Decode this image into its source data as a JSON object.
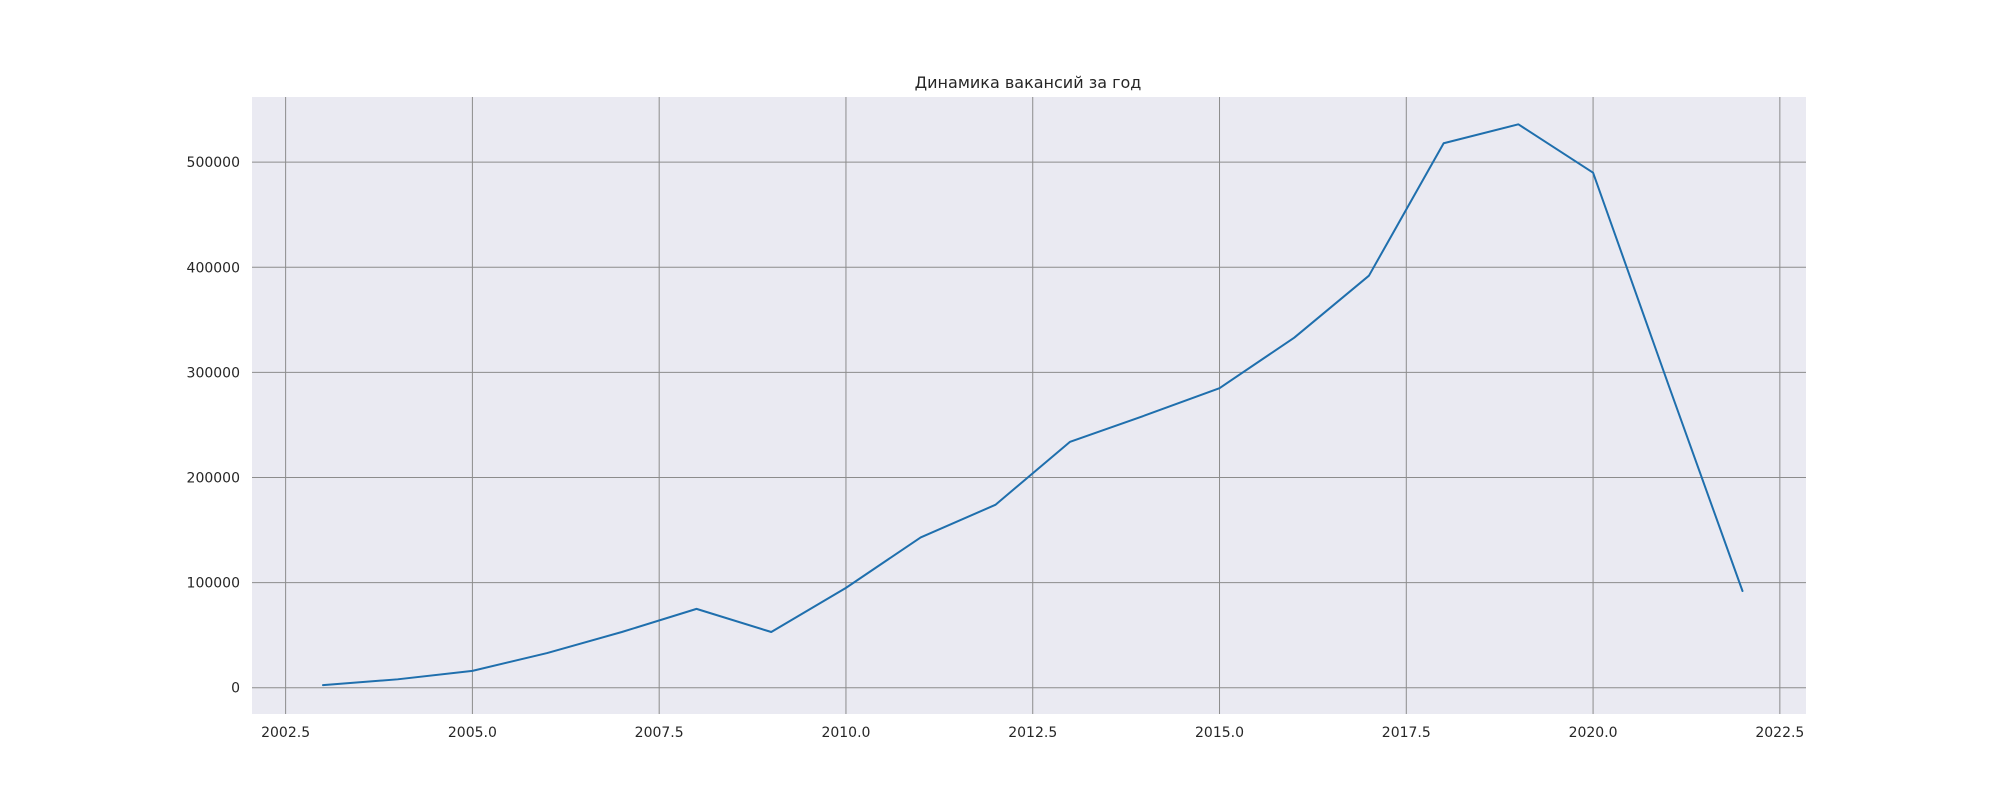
{
  "chart_data": {
    "type": "line",
    "title": "Динамика вакансий за год",
    "xlabel": "",
    "ylabel": "",
    "xlim": [
      2002.05,
      2022.85
    ],
    "ylim": [
      -25000,
      562000
    ],
    "x_ticks": [
      2002.5,
      2005.0,
      2007.5,
      2010.0,
      2012.5,
      2015.0,
      2017.5,
      2020.0,
      2022.5
    ],
    "x_tick_labels": [
      "2002.5",
      "2005.0",
      "2007.5",
      "2010.0",
      "2012.5",
      "2015.0",
      "2017.5",
      "2020.0",
      "2022.5"
    ],
    "y_ticks": [
      0,
      100000,
      200000,
      300000,
      400000,
      500000
    ],
    "y_tick_labels": [
      "0",
      "100000",
      "200000",
      "300000",
      "400000",
      "500000"
    ],
    "grid": true,
    "background_color": "#eaeaf2",
    "grid_color": "#8c8c8c",
    "series": [
      {
        "color": "#1f6fad",
        "x": [
          2003,
          2004,
          2005,
          2006,
          2007,
          2008,
          2009,
          2010,
          2011,
          2012,
          2013,
          2014,
          2015,
          2016,
          2017,
          2018,
          2019,
          2020,
          2021,
          2022
        ],
        "y": [
          2500,
          8000,
          16000,
          33000,
          53000,
          75000,
          53000,
          95000,
          143000,
          174000,
          234000,
          259000,
          285000,
          333000,
          392000,
          518000,
          536000,
          490000,
          290000,
          92000
        ]
      }
    ]
  }
}
